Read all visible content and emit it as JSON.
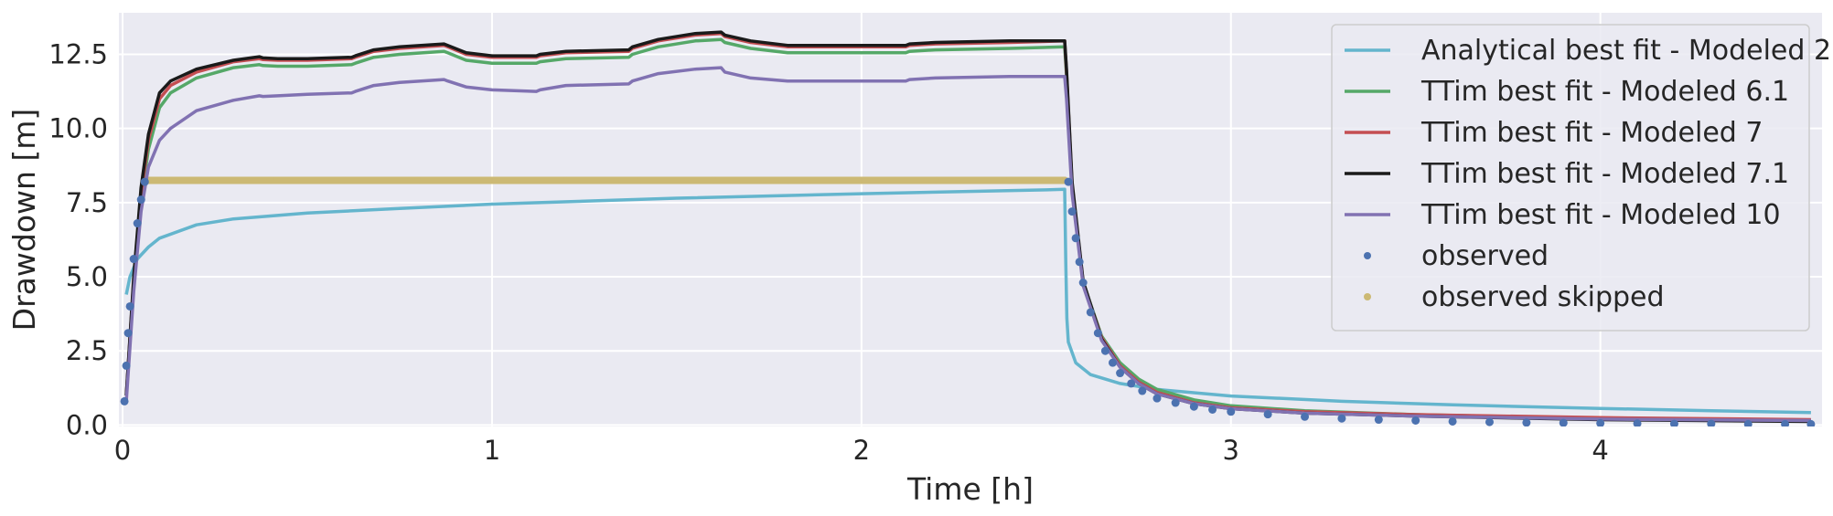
{
  "chart_data": {
    "type": "line",
    "xlabel": "Time [h]",
    "ylabel": "Drawdown [m]",
    "xlim": [
      -0.01,
      4.6
    ],
    "ylim": [
      -0.05,
      13.9
    ],
    "x_ticks": [
      0,
      1,
      2,
      3,
      4
    ],
    "x_tick_labels": [
      "0",
      "1",
      "2",
      "3",
      "4"
    ],
    "y_ticks": [
      0.0,
      2.5,
      5.0,
      7.5,
      10.0,
      12.5
    ],
    "y_tick_labels": [
      "0.0",
      "2.5",
      "5.0",
      "7.5",
      "10.0",
      "12.5"
    ],
    "grid": true,
    "legend_position": "top-right",
    "colors": {
      "plot_background": "#EAEAF2",
      "grid": "#FFFFFF"
    },
    "series": [
      {
        "name": "Analytical best fit - Modeled 2",
        "kind": "line",
        "color": "#64B5CD",
        "x": [
          0.01,
          0.02,
          0.04,
          0.07,
          0.1,
          0.2,
          0.3,
          0.5,
          0.75,
          1.0,
          1.5,
          2.0,
          2.5,
          2.55,
          2.553,
          2.556,
          2.56,
          2.58,
          2.62,
          2.7,
          2.8,
          3.0,
          3.3,
          3.6,
          4.0,
          4.3,
          4.57
        ],
        "y": [
          4.4,
          5.0,
          5.6,
          6.0,
          6.3,
          6.75,
          6.95,
          7.15,
          7.3,
          7.45,
          7.65,
          7.8,
          7.93,
          7.95,
          5.5,
          3.6,
          2.8,
          2.1,
          1.7,
          1.4,
          1.2,
          0.98,
          0.8,
          0.68,
          0.56,
          0.48,
          0.42
        ]
      },
      {
        "name": "TTim best fit - Modeled 6.1",
        "kind": "line",
        "color": "#55A868",
        "x": [
          0.01,
          0.03,
          0.05,
          0.07,
          0.1,
          0.13,
          0.2,
          0.3,
          0.37,
          0.38,
          0.42,
          0.5,
          0.62,
          0.63,
          0.68,
          0.75,
          0.87,
          0.88,
          0.93,
          1.0,
          1.12,
          1.13,
          1.2,
          1.37,
          1.38,
          1.45,
          1.55,
          1.62,
          1.63,
          1.7,
          1.8,
          2.0,
          2.12,
          2.13,
          2.2,
          2.4,
          2.55,
          2.555,
          2.57,
          2.6,
          2.65,
          2.7,
          2.75,
          2.8,
          2.9,
          3.0,
          3.2,
          3.5,
          4.0,
          4.57
        ],
        "y": [
          1.0,
          4.8,
          7.6,
          9.3,
          10.7,
          11.2,
          11.7,
          12.05,
          12.15,
          12.12,
          12.1,
          12.1,
          12.15,
          12.2,
          12.4,
          12.5,
          12.6,
          12.55,
          12.3,
          12.2,
          12.2,
          12.25,
          12.35,
          12.4,
          12.5,
          12.75,
          12.95,
          13.0,
          12.9,
          12.7,
          12.55,
          12.55,
          12.55,
          12.6,
          12.65,
          12.7,
          12.75,
          11.8,
          8.0,
          4.8,
          3.0,
          2.1,
          1.55,
          1.2,
          0.85,
          0.65,
          0.48,
          0.35,
          0.22,
          0.15
        ]
      },
      {
        "name": "TTim best fit - Modeled 7",
        "kind": "line",
        "color": "#C44E52",
        "x": [
          0.01,
          0.03,
          0.05,
          0.07,
          0.1,
          0.13,
          0.2,
          0.3,
          0.37,
          0.38,
          0.42,
          0.5,
          0.62,
          0.63,
          0.68,
          0.75,
          0.87,
          0.88,
          0.93,
          1.0,
          1.12,
          1.13,
          1.2,
          1.37,
          1.38,
          1.45,
          1.55,
          1.62,
          1.63,
          1.7,
          1.8,
          2.0,
          2.12,
          2.13,
          2.2,
          2.4,
          2.55,
          2.555,
          2.57,
          2.6,
          2.65,
          2.7,
          2.75,
          2.8,
          2.9,
          3.0,
          3.2,
          3.5,
          4.0,
          4.57
        ],
        "y": [
          1.0,
          4.9,
          7.8,
          9.6,
          11.0,
          11.45,
          11.9,
          12.25,
          12.35,
          12.32,
          12.3,
          12.3,
          12.35,
          12.4,
          12.6,
          12.7,
          12.8,
          12.75,
          12.5,
          12.4,
          12.4,
          12.45,
          12.55,
          12.6,
          12.7,
          12.95,
          13.15,
          13.2,
          13.1,
          12.9,
          12.75,
          12.75,
          12.75,
          12.8,
          12.85,
          12.9,
          12.95,
          11.9,
          8.1,
          4.8,
          2.95,
          2.0,
          1.45,
          1.1,
          0.75,
          0.58,
          0.45,
          0.35,
          0.25,
          0.18
        ]
      },
      {
        "name": "TTim best fit - Modeled 7.1",
        "kind": "line",
        "color": "#1A1A1A",
        "x": [
          0.01,
          0.03,
          0.05,
          0.07,
          0.1,
          0.13,
          0.2,
          0.3,
          0.37,
          0.38,
          0.42,
          0.5,
          0.62,
          0.63,
          0.68,
          0.75,
          0.87,
          0.88,
          0.93,
          1.0,
          1.12,
          1.13,
          1.2,
          1.37,
          1.38,
          1.45,
          1.55,
          1.62,
          1.63,
          1.7,
          1.8,
          2.0,
          2.12,
          2.13,
          2.2,
          2.4,
          2.55,
          2.555,
          2.57,
          2.6,
          2.65,
          2.7,
          2.75,
          2.8,
          2.9,
          3.0,
          3.2,
          3.5,
          4.0,
          4.57
        ],
        "y": [
          1.0,
          5.0,
          8.0,
          9.8,
          11.2,
          11.6,
          12.0,
          12.3,
          12.42,
          12.38,
          12.35,
          12.35,
          12.4,
          12.45,
          12.65,
          12.75,
          12.85,
          12.8,
          12.55,
          12.45,
          12.45,
          12.5,
          12.6,
          12.65,
          12.75,
          13.0,
          13.2,
          13.25,
          13.15,
          12.95,
          12.8,
          12.8,
          12.8,
          12.85,
          12.9,
          12.95,
          12.95,
          12.0,
          8.2,
          4.85,
          2.9,
          1.95,
          1.4,
          1.05,
          0.72,
          0.55,
          0.4,
          0.3,
          0.18,
          0.12
        ]
      },
      {
        "name": "TTim best fit - Modeled 10",
        "kind": "line",
        "color": "#8172B2",
        "x": [
          0.01,
          0.03,
          0.05,
          0.07,
          0.1,
          0.13,
          0.2,
          0.3,
          0.37,
          0.38,
          0.42,
          0.5,
          0.62,
          0.63,
          0.68,
          0.75,
          0.87,
          0.88,
          0.93,
          1.0,
          1.12,
          1.13,
          1.2,
          1.37,
          1.38,
          1.45,
          1.55,
          1.62,
          1.63,
          1.7,
          1.8,
          2.0,
          2.12,
          2.13,
          2.2,
          2.4,
          2.55,
          2.555,
          2.57,
          2.6,
          2.65,
          2.7,
          2.75,
          2.8,
          2.9,
          3.0,
          3.2,
          3.5,
          4.0,
          4.57
        ],
        "y": [
          0.8,
          4.5,
          7.2,
          8.7,
          9.6,
          10.0,
          10.6,
          10.95,
          11.1,
          11.08,
          11.1,
          11.15,
          11.2,
          11.25,
          11.45,
          11.55,
          11.65,
          11.6,
          11.4,
          11.3,
          11.25,
          11.3,
          11.45,
          11.5,
          11.6,
          11.85,
          12.0,
          12.05,
          11.9,
          11.7,
          11.6,
          11.6,
          11.6,
          11.65,
          11.7,
          11.75,
          11.75,
          11.0,
          7.8,
          4.7,
          2.85,
          1.95,
          1.4,
          1.05,
          0.72,
          0.55,
          0.4,
          0.3,
          0.2,
          0.15
        ]
      },
      {
        "name": "observed",
        "kind": "points",
        "color": "#4C72B0",
        "x": [
          0.005,
          0.01,
          0.015,
          0.02,
          0.03,
          0.04,
          0.05,
          0.06,
          2.56,
          2.57,
          2.58,
          2.59,
          2.6,
          2.62,
          2.64,
          2.66,
          2.68,
          2.7,
          2.73,
          2.76,
          2.8,
          2.85,
          2.9,
          2.95,
          3.0,
          3.1,
          3.2,
          3.3,
          3.4,
          3.5,
          3.6,
          3.7,
          3.8,
          3.9,
          4.0,
          4.1,
          4.2,
          4.3,
          4.4,
          4.5,
          4.57
        ],
        "y": [
          0.8,
          2.0,
          3.1,
          4.0,
          5.6,
          6.8,
          7.6,
          8.2,
          8.2,
          7.2,
          6.3,
          5.5,
          4.8,
          3.8,
          3.1,
          2.5,
          2.1,
          1.75,
          1.4,
          1.15,
          0.9,
          0.75,
          0.62,
          0.52,
          0.45,
          0.36,
          0.28,
          0.22,
          0.18,
          0.15,
          0.12,
          0.1,
          0.08,
          0.07,
          0.06,
          0.05,
          0.04,
          0.04,
          0.03,
          0.03,
          0.03
        ]
      },
      {
        "name": "observed skipped",
        "kind": "points",
        "color": "#CCB974",
        "x": [
          0.07,
          0.2,
          0.4,
          0.6,
          0.8,
          1.0,
          1.2,
          1.4,
          1.6,
          1.8,
          2.0,
          2.2,
          2.4,
          2.55
        ],
        "y": [
          8.25,
          8.25,
          8.25,
          8.25,
          8.25,
          8.25,
          8.25,
          8.25,
          8.25,
          8.25,
          8.25,
          8.25,
          8.25,
          8.25
        ]
      }
    ]
  }
}
